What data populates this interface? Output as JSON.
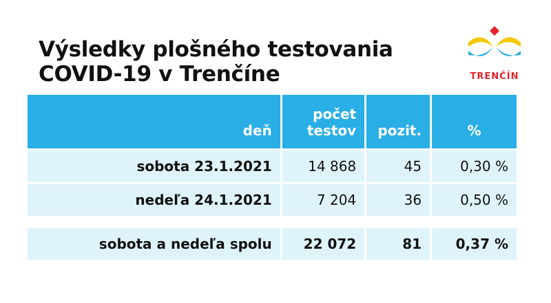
{
  "title": {
    "line1": "Výsledky plošného testovania",
    "line2": "COVID-19 v Trenčíne"
  },
  "logo": {
    "text": "TRENČÍN",
    "icon": "trencin-city-logo",
    "colors": {
      "yellow": "#f6c800",
      "blue": "#29aee6",
      "red": "#e3242b"
    }
  },
  "table": {
    "headers": {
      "day": "deň",
      "tests_line1": "počet",
      "tests_line2": "testov",
      "positive": "pozit.",
      "percent": "%"
    },
    "rows": [
      {
        "day": "sobota 23.1.2021",
        "tests": "14 868",
        "positive": "45",
        "percent": "0,30 %"
      },
      {
        "day": "nedeľa 24.1.2021",
        "tests": "7 204",
        "positive": "36",
        "percent": "0,50 %"
      }
    ],
    "total": {
      "day": "sobota a nedeľa spolu",
      "tests": "22 072",
      "positive": "81",
      "percent": "0,37 %"
    }
  },
  "colors": {
    "header_bg": "#29aee6",
    "row_bg": "#dff3fb"
  }
}
